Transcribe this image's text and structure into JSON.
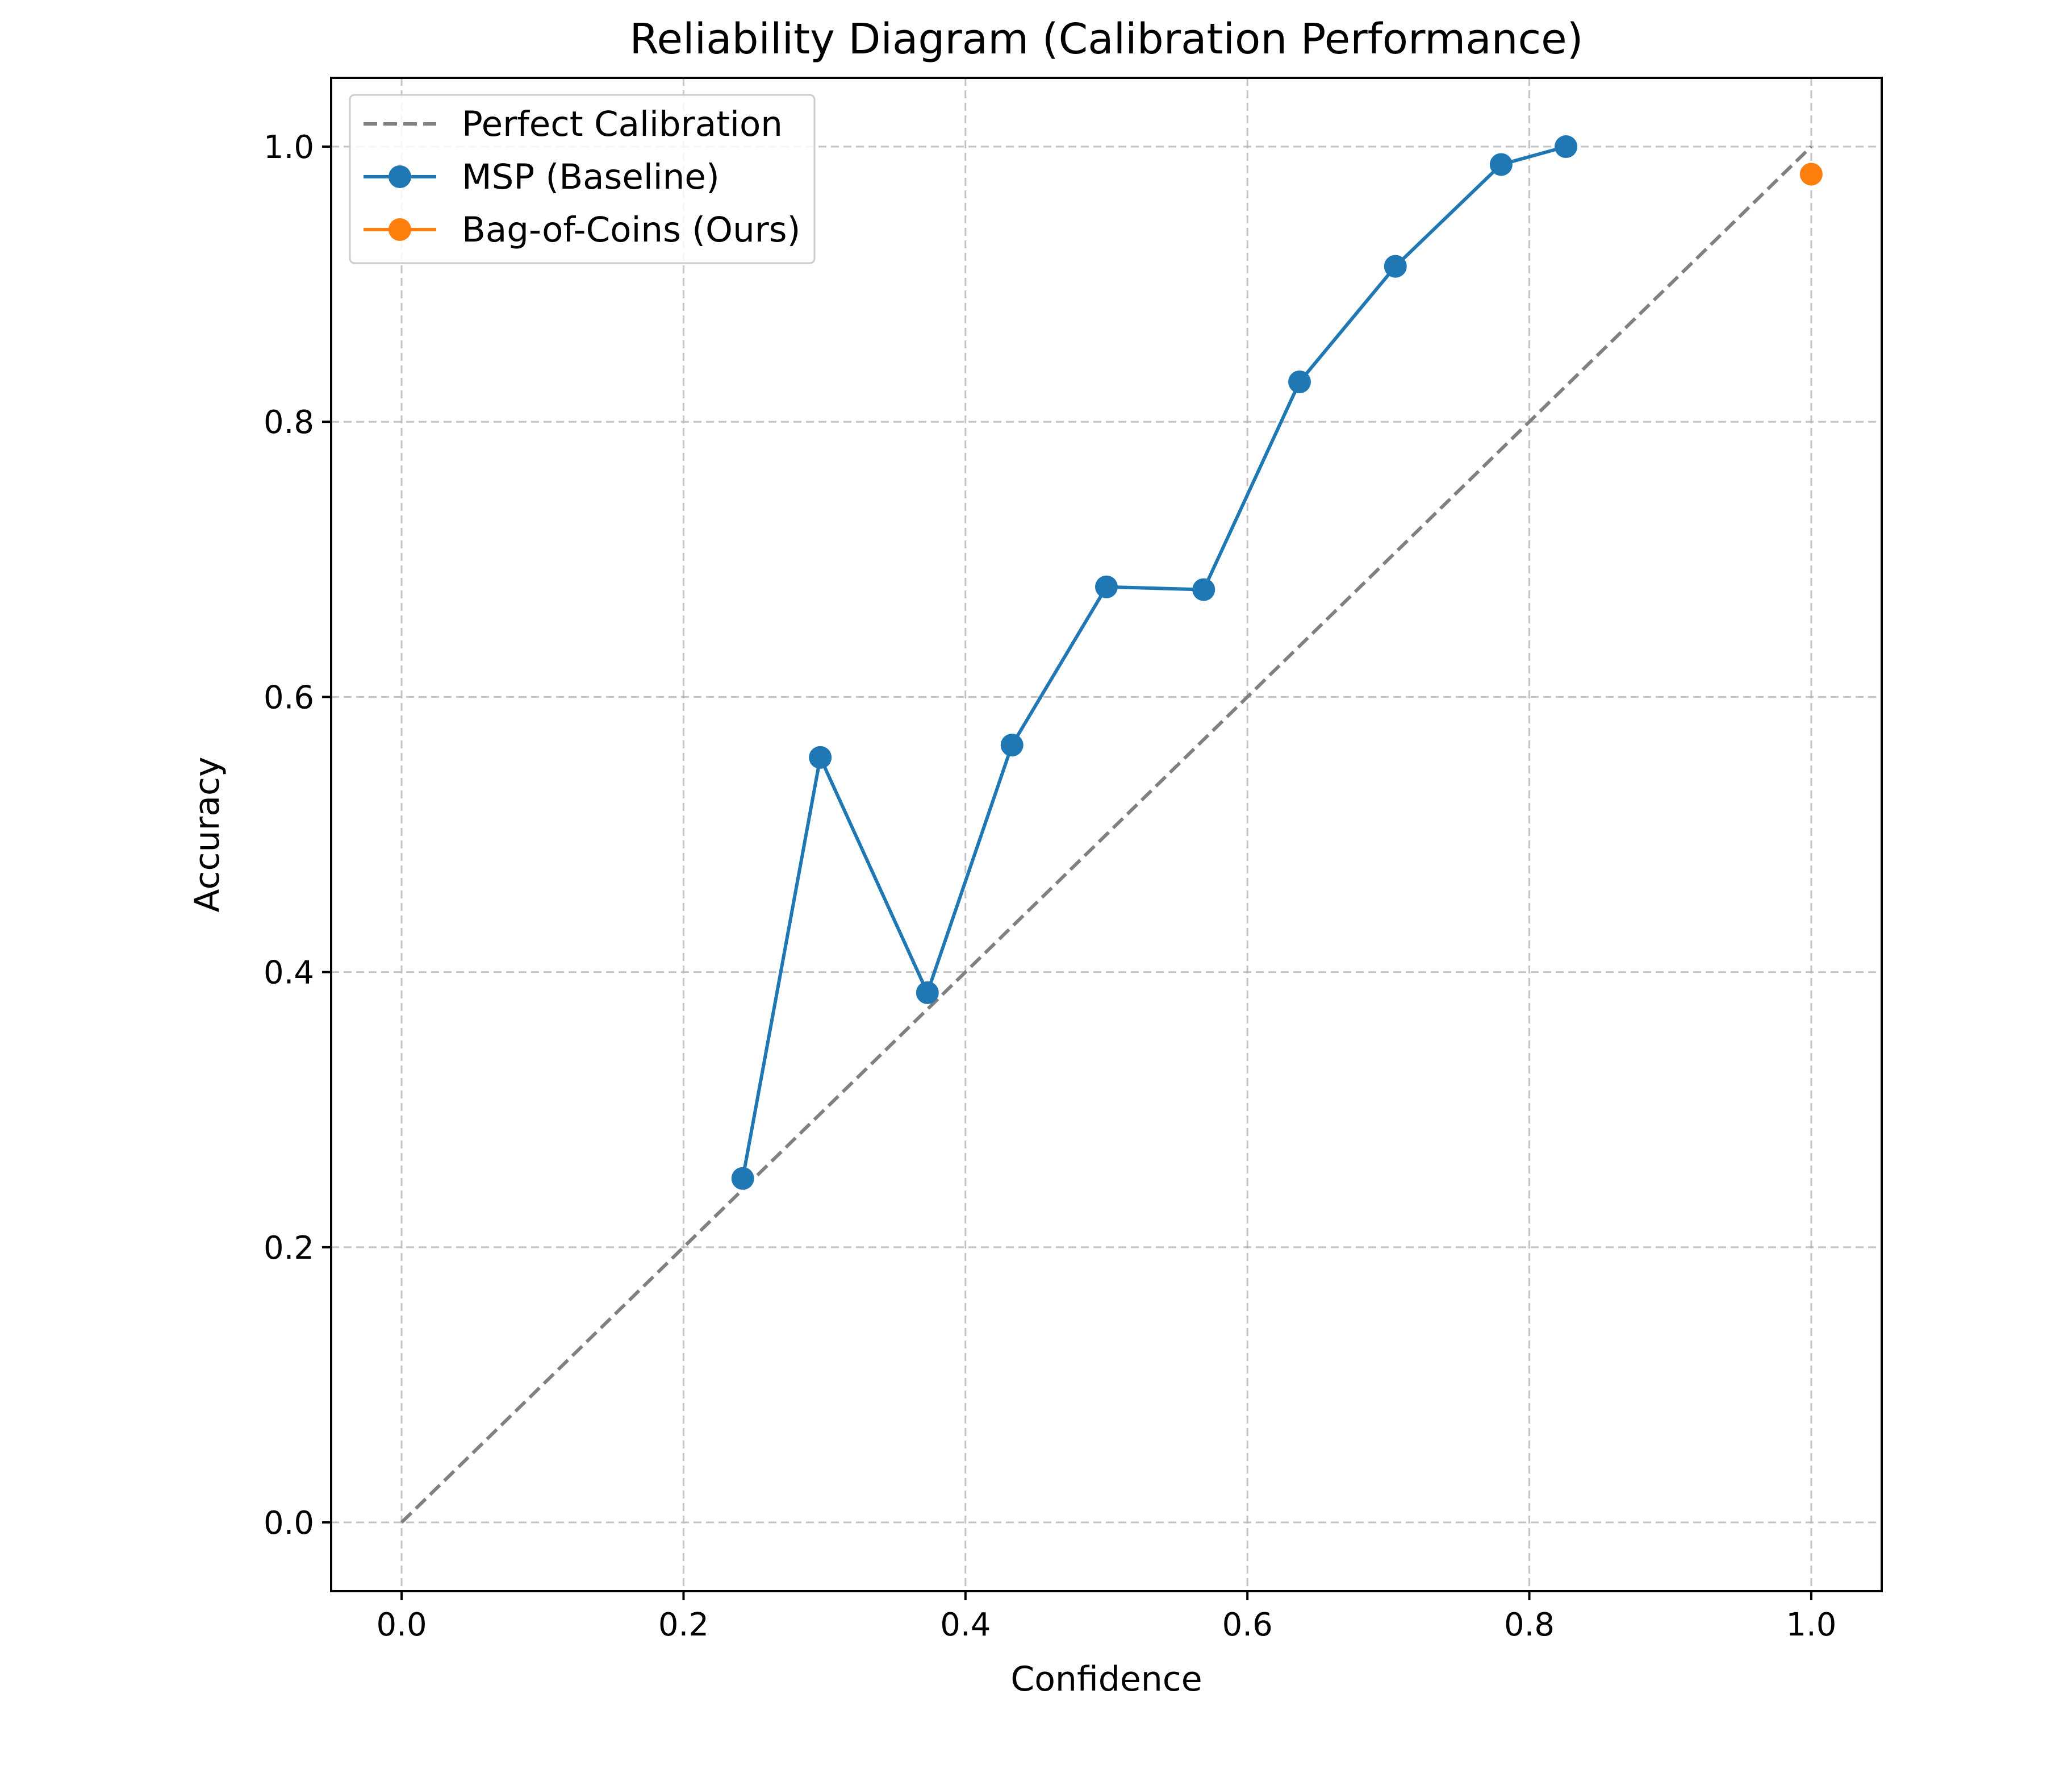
{
  "chart_data": {
    "type": "line",
    "title": "Reliability Diagram (Calibration Performance)",
    "xlabel": "Confidence",
    "ylabel": "Accuracy",
    "xlim": [
      -0.05,
      1.05
    ],
    "ylim": [
      -0.05,
      1.05
    ],
    "xticks": [
      "0.0",
      "0.2",
      "0.4",
      "0.6",
      "0.8",
      "1.0"
    ],
    "yticks": [
      "0.0",
      "0.2",
      "0.4",
      "0.6",
      "0.8",
      "1.0"
    ],
    "xtick_values": [
      0.0,
      0.2,
      0.4,
      0.6,
      0.8,
      1.0
    ],
    "ytick_values": [
      0.0,
      0.2,
      0.4,
      0.6,
      0.8,
      1.0
    ],
    "grid": true,
    "legend_position": "top-left",
    "series": [
      {
        "name": "Perfect Calibration",
        "style": "dashed",
        "color": "#808080",
        "marker": false,
        "x": [
          0.0,
          1.0
        ],
        "y": [
          0.0,
          1.0
        ]
      },
      {
        "name": "MSP (Baseline)",
        "style": "solid",
        "color": "#1f77b4",
        "marker": true,
        "x": [
          0.242,
          0.297,
          0.373,
          0.433,
          0.5,
          0.569,
          0.637,
          0.705,
          0.78,
          0.826
        ],
        "y": [
          0.25,
          0.556,
          0.385,
          0.565,
          0.68,
          0.678,
          0.829,
          0.913,
          0.987,
          1.0
        ]
      },
      {
        "name": "Bag-of-Coins (Ours)",
        "style": "solid",
        "color": "#ff7f0e",
        "marker": true,
        "x": [
          1.0
        ],
        "y": [
          0.98
        ]
      }
    ]
  }
}
